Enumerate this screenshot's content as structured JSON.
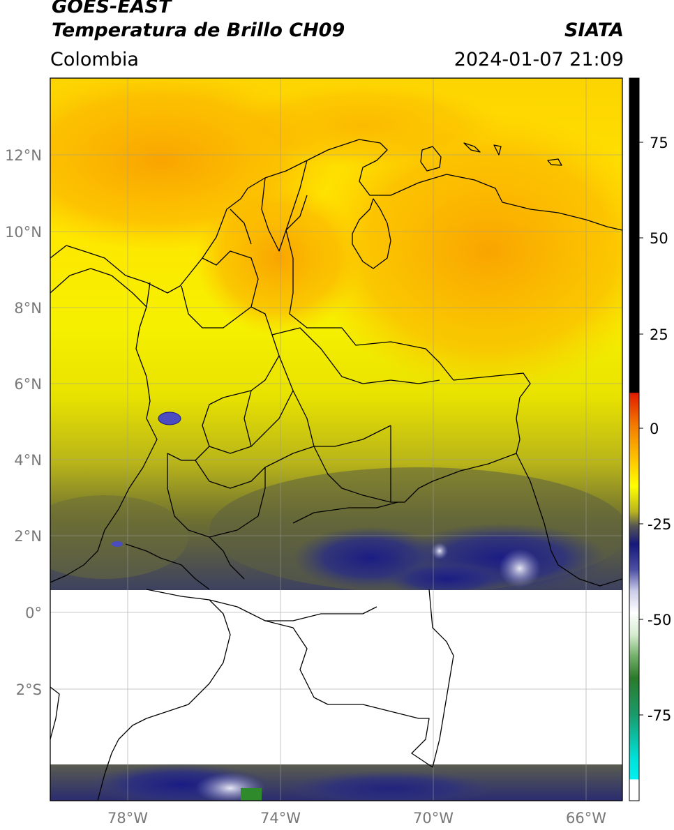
{
  "header": {
    "line1": "GOES-EAST",
    "line2": "Temperatura de Brillo CH09",
    "region": "Colombia",
    "source": "SIATA",
    "datetime": "2024-01-07 21:09"
  },
  "map": {
    "lat_labels": [
      "12°N",
      "10°N",
      "8°N",
      "6°N",
      "4°N",
      "2°N",
      "0°",
      "2°S"
    ],
    "lon_labels": [
      "78°W",
      "74°W",
      "70°W",
      "66°W"
    ]
  },
  "colorbar": {
    "ticks": [
      "75",
      "50",
      "25",
      "0",
      "-25",
      "-50",
      "-75"
    ]
  }
}
